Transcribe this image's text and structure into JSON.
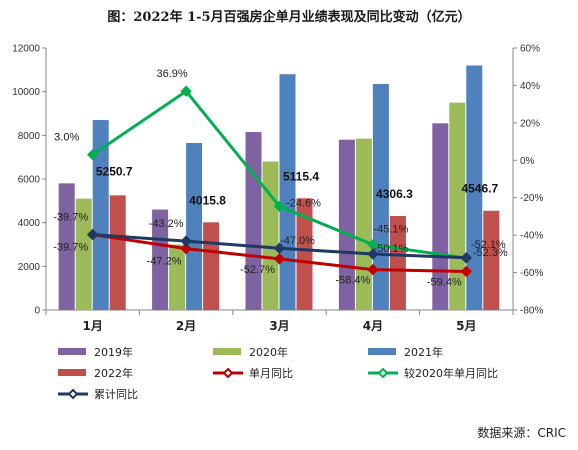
{
  "title": "图：2022年 1-5月百强房企单月业绩表现及同比变动（亿元）",
  "source": "数据来源：CRIC",
  "chart_data": {
    "type": "bar",
    "categories": [
      "1月",
      "2月",
      "3月",
      "4月",
      "5月"
    ],
    "bar_series": [
      {
        "name": "2019年",
        "color": "#7e62a1",
        "values": [
          5800,
          4600,
          8150,
          7800,
          8550
        ]
      },
      {
        "name": "2020年",
        "color": "#9bbb59",
        "values": [
          5100,
          3000,
          6800,
          7850,
          9500
        ]
      },
      {
        "name": "2021年",
        "color": "#4f81bd",
        "values": [
          8700,
          7650,
          10800,
          10350,
          11200
        ]
      },
      {
        "name": "2022年",
        "color": "#c0504d",
        "values": [
          5250.7,
          4015.8,
          5115.4,
          4306.3,
          4546.7
        ]
      }
    ],
    "line_series": [
      {
        "name": "单月同比",
        "color": "#c00000",
        "marker": "diamond",
        "values": [
          -39.7,
          -47.2,
          -52.7,
          -58.4,
          -59.4
        ]
      },
      {
        "name": "较2020年单月同比",
        "color": "#00b050",
        "marker": "diamond",
        "values": [
          3.0,
          36.9,
          -24.6,
          -45.1,
          -52.3
        ]
      },
      {
        "name": "累计同比",
        "color": "#1f3864",
        "marker": "diamond",
        "values": [
          -39.7,
          -43.2,
          -47.0,
          -50.1,
          -52.1
        ]
      }
    ],
    "bar_value_labels": [
      "5250.7",
      "4015.8",
      "5115.4",
      "4306.3",
      "4546.7"
    ],
    "line_value_labels": {
      "单月同比": [
        "-39.7%",
        "-47.2%",
        "-52.7%",
        "-58.4%",
        "-59.4%"
      ],
      "较2020年单月同比": [
        "3.0%",
        "36.9%",
        "-24.6%",
        "-45.1%",
        "-52.3%"
      ],
      "累计同比": [
        "-39.7%",
        "-43.2%",
        "-47.0%",
        "-50.1%",
        "-52.1%"
      ]
    },
    "y_left": {
      "min": 0,
      "max": 12000,
      "step": 2000
    },
    "y_right": {
      "min": -80,
      "max": 60,
      "step": 20,
      "unit": "%"
    },
    "legend": {
      "position": "bottom",
      "items": [
        "2019年",
        "2020年",
        "2021年",
        "2022年",
        "单月同比",
        "较2020年单月同比",
        "累计同比"
      ]
    },
    "grid": false
  }
}
